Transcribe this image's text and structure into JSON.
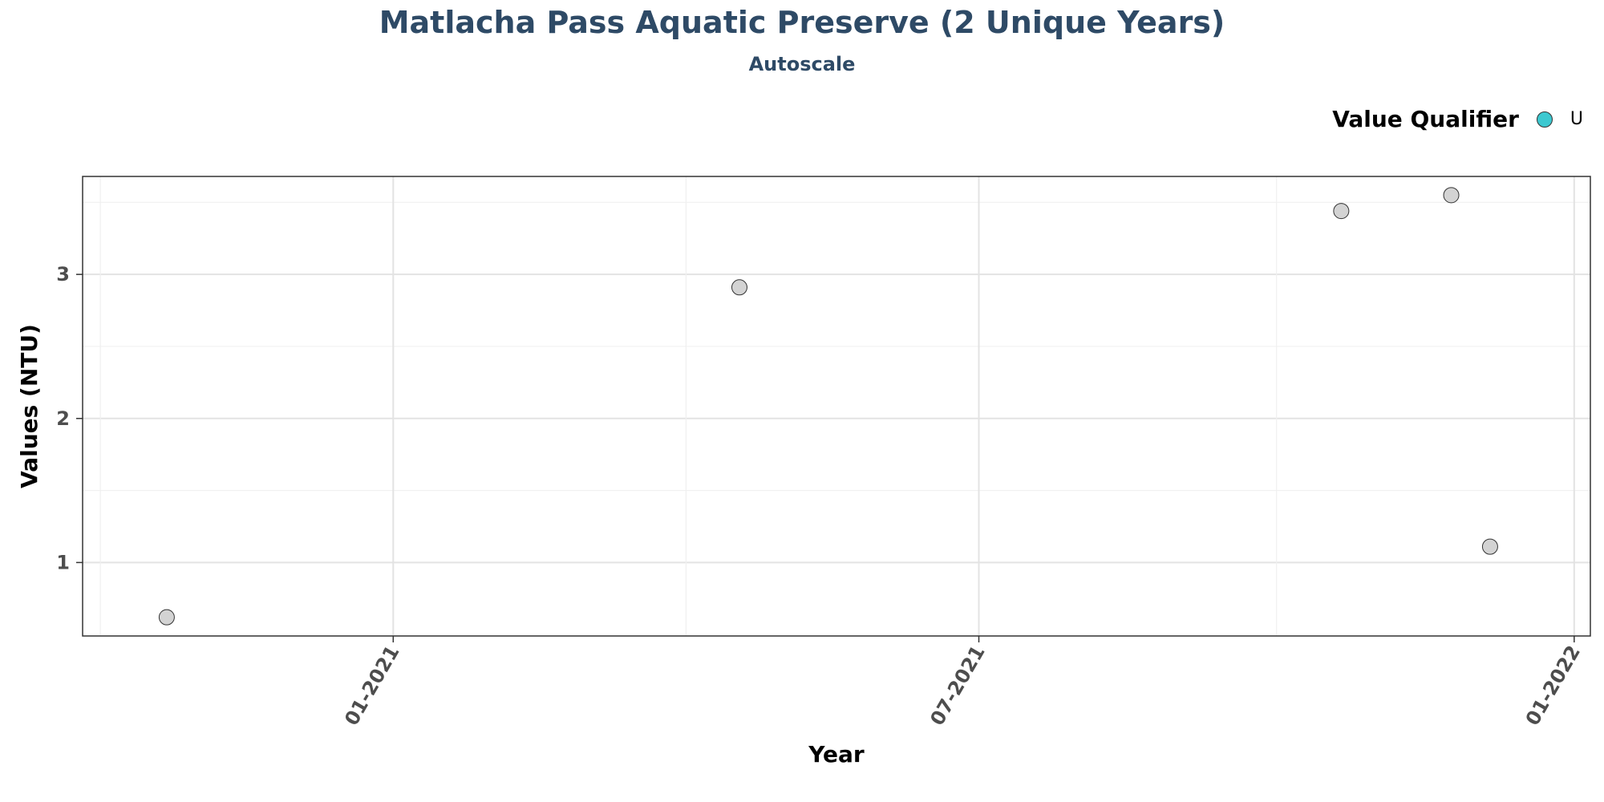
{
  "chart_data": {
    "type": "scatter",
    "title": "Matlacha Pass Aquatic Preserve (2 Unique Years)",
    "subtitle": "Autoscale",
    "xlabel": "Year",
    "ylabel": "Values (NTU)",
    "x_tick_labels": [
      "01-2021",
      "07-2021",
      "01-2022"
    ],
    "x_tick_dates": [
      "2021-01-01",
      "2021-07-01",
      "2022-01-01"
    ],
    "xlim": [
      "2020-09-27",
      "2022-01-06"
    ],
    "y_ticks": [
      1,
      2,
      3
    ],
    "ylim": [
      0.49,
      3.68
    ],
    "grid": true,
    "legend": {
      "title": "Value Qualifier",
      "position": "top-right",
      "items": [
        {
          "label": "U",
          "color": "#3cc8d0"
        }
      ]
    },
    "points": [
      {
        "x": "2020-10-23",
        "y": 0.62
      },
      {
        "x": "2021-04-18",
        "y": 2.91
      },
      {
        "x": "2021-10-21",
        "y": 3.44
      },
      {
        "x": "2021-11-24",
        "y": 3.55
      },
      {
        "x": "2021-12-06",
        "y": 1.11
      }
    ],
    "point_color": "#d3d3d3"
  }
}
